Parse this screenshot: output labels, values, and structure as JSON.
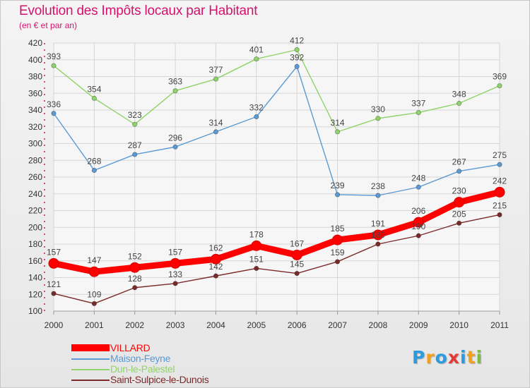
{
  "chart_data": {
    "type": "line",
    "title": "Evolution des Impôts locaux par Habitant",
    "subtitle": "(en € et par an)",
    "xlabel": "",
    "ylabel": "",
    "x": [
      "2000",
      "2001",
      "2002",
      "2003",
      "2004",
      "2005",
      "2006",
      "2007",
      "2008",
      "2009",
      "2010",
      "2011"
    ],
    "ylim": [
      100,
      420
    ],
    "yticks": [
      100,
      120,
      140,
      160,
      180,
      200,
      220,
      240,
      260,
      280,
      300,
      320,
      340,
      360,
      380,
      400,
      420
    ],
    "grid": true,
    "legend_position": "bottom-left",
    "series": [
      {
        "name": "Dun-le-Palestel",
        "color": "#8fd36a",
        "emphasis": false,
        "values": [
          393,
          354,
          323,
          363,
          377,
          401,
          412,
          314,
          330,
          337,
          348,
          369
        ]
      },
      {
        "name": "Maison-Feyne",
        "color": "#5b9ad3",
        "emphasis": false,
        "values": [
          336,
          268,
          287,
          296,
          314,
          332,
          392,
          239,
          238,
          248,
          267,
          275
        ]
      },
      {
        "name": "Saint-Sulpice-le-Dunois",
        "color": "#7b2a2a",
        "emphasis": false,
        "values": [
          121,
          109,
          128,
          133,
          142,
          151,
          145,
          159,
          180,
          190,
          205,
          215
        ]
      },
      {
        "name": "VILLARD",
        "color": "#ff0000",
        "emphasis": true,
        "values": [
          157,
          147,
          152,
          157,
          162,
          178,
          167,
          185,
          191,
          206,
          230,
          242
        ]
      }
    ],
    "legend_order": [
      "VILLARD",
      "Maison-Feyne",
      "Dun-le-Palestel",
      "Saint-Sulpice-le-Dunois"
    ]
  },
  "logo": {
    "text": "Proxiti",
    "letters": [
      "P",
      "r",
      "o",
      "x",
      "i",
      "t",
      "i"
    ],
    "letter_colors": [
      "#2c9be0",
      "#f2a11c",
      "#2c9be0",
      "#e53935",
      "#2c9be0",
      "#f2a11c",
      "#7cbf3a"
    ]
  }
}
